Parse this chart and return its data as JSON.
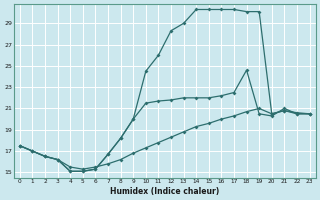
{
  "xlabel": "Humidex (Indice chaleur)",
  "bg_color": "#cce8ee",
  "grid_color": "#ffffff",
  "line_color": "#2d6e6e",
  "xlim": [
    -0.5,
    23.5
  ],
  "ylim": [
    14.5,
    30.8
  ],
  "xticks": [
    0,
    1,
    2,
    3,
    4,
    5,
    6,
    7,
    8,
    9,
    10,
    11,
    12,
    13,
    14,
    15,
    16,
    17,
    18,
    19,
    20,
    21,
    22,
    23
  ],
  "yticks": [
    15,
    17,
    19,
    21,
    23,
    25,
    27,
    29
  ],
  "line1_x": [
    0,
    1,
    2,
    3,
    4,
    5,
    6,
    7,
    8,
    9,
    10,
    11,
    12,
    13,
    14,
    15,
    16,
    17,
    18,
    19,
    20,
    21,
    22,
    23
  ],
  "line1_y": [
    17.5,
    17.0,
    16.5,
    16.2,
    15.1,
    15.1,
    15.3,
    16.7,
    18.2,
    20.0,
    24.5,
    26.0,
    28.3,
    29.0,
    30.3,
    30.3,
    30.3,
    30.3,
    30.1,
    30.1,
    20.5,
    20.8,
    20.5,
    20.5
  ],
  "line2_x": [
    0,
    1,
    2,
    3,
    4,
    5,
    6,
    7,
    8,
    9,
    10,
    11,
    12,
    13,
    14,
    15,
    16,
    17,
    18,
    19,
    20,
    21,
    22,
    23
  ],
  "line2_y": [
    17.5,
    17.0,
    16.5,
    16.2,
    15.1,
    15.1,
    15.3,
    16.7,
    18.2,
    20.0,
    21.5,
    21.7,
    21.8,
    22.0,
    22.0,
    22.0,
    22.2,
    22.5,
    24.6,
    20.5,
    20.3,
    21.0,
    20.5,
    20.5
  ],
  "line3_x": [
    0,
    1,
    2,
    3,
    4,
    5,
    6,
    7,
    8,
    9,
    10,
    11,
    12,
    13,
    14,
    15,
    16,
    17,
    18,
    19,
    20,
    21,
    22,
    23
  ],
  "line3_y": [
    17.5,
    17.0,
    16.5,
    16.2,
    15.5,
    15.3,
    15.5,
    15.8,
    16.2,
    16.8,
    17.3,
    17.8,
    18.3,
    18.8,
    19.3,
    19.6,
    20.0,
    20.3,
    20.7,
    21.0,
    20.5,
    20.8,
    20.6,
    20.5
  ]
}
